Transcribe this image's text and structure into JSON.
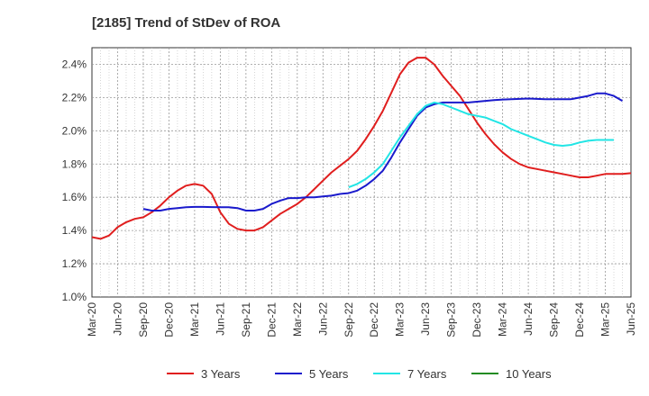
{
  "chart_data": {
    "type": "line",
    "title": "[2185]  Trend of StDev of ROA",
    "xlabel": "",
    "ylabel": "",
    "x_ticks": [
      "Mar-20",
      "Jun-20",
      "Sep-20",
      "Dec-20",
      "Mar-21",
      "Jun-21",
      "Sep-21",
      "Dec-21",
      "Mar-22",
      "Jun-22",
      "Sep-22",
      "Dec-22",
      "Mar-23",
      "Jun-23",
      "Sep-23",
      "Dec-23",
      "Mar-24",
      "Jun-24",
      "Sep-24",
      "Dec-24",
      "Mar-25",
      "Jun-25"
    ],
    "y_ticks": [
      "1.0%",
      "1.2%",
      "1.4%",
      "1.6%",
      "1.8%",
      "2.0%",
      "2.2%",
      "2.4%"
    ],
    "ylim": [
      1.0,
      2.5
    ],
    "grid": true,
    "legend_position": "bottom",
    "series": [
      {
        "name": "3 Years",
        "color": "#e01e1e",
        "values": [
          1.36,
          1.35,
          1.37,
          1.42,
          1.45,
          1.47,
          1.48,
          1.51,
          1.55,
          1.6,
          1.64,
          1.67,
          1.68,
          1.67,
          1.62,
          1.51,
          1.44,
          1.41,
          1.4,
          1.4,
          1.42,
          1.46,
          1.5,
          1.53,
          1.56,
          1.6,
          1.65,
          1.7,
          1.75,
          1.79,
          1.83,
          1.88,
          1.95,
          2.03,
          2.12,
          2.23,
          2.34,
          2.41,
          2.44,
          2.44,
          2.4,
          2.33,
          2.27,
          2.21,
          2.13,
          2.05,
          1.98,
          1.92,
          1.87,
          1.83,
          1.8,
          1.78,
          1.77,
          1.76,
          1.75,
          1.74,
          1.73,
          1.72,
          1.72,
          1.73,
          1.74,
          1.74,
          1.74,
          1.745
        ]
      },
      {
        "name": "5 Years",
        "color": "#1a1acc",
        "values": [
          null,
          null,
          null,
          null,
          null,
          null,
          1.53,
          1.52,
          1.52,
          1.53,
          1.535,
          1.54,
          1.542,
          1.542,
          1.541,
          1.54,
          1.54,
          1.535,
          1.52,
          1.52,
          1.53,
          1.56,
          1.58,
          1.595,
          1.595,
          1.6,
          1.6,
          1.605,
          1.61,
          1.62,
          1.625,
          1.64,
          1.67,
          1.71,
          1.76,
          1.84,
          1.93,
          2.01,
          2.09,
          2.14,
          2.16,
          2.17,
          2.17,
          2.17,
          2.17,
          2.175,
          2.18,
          2.185,
          2.188,
          2.19,
          2.192,
          2.194,
          2.192,
          2.19,
          2.19,
          2.19,
          2.19,
          2.2,
          2.21,
          2.225,
          2.225,
          2.21,
          2.18
        ]
      },
      {
        "name": "7 Years",
        "color": "#22e5e5",
        "values": [
          null,
          null,
          null,
          null,
          null,
          null,
          null,
          null,
          null,
          null,
          null,
          null,
          null,
          null,
          null,
          null,
          null,
          null,
          null,
          null,
          null,
          null,
          null,
          null,
          null,
          null,
          null,
          null,
          null,
          null,
          1.66,
          1.68,
          1.71,
          1.75,
          1.8,
          1.88,
          1.96,
          2.03,
          2.1,
          2.15,
          2.17,
          2.16,
          2.14,
          2.12,
          2.1,
          2.09,
          2.08,
          2.06,
          2.04,
          2.01,
          1.99,
          1.97,
          1.95,
          1.93,
          1.915,
          1.91,
          1.915,
          1.93,
          1.94,
          1.945,
          1.945,
          1.945
        ]
      },
      {
        "name": "10 Years",
        "color": "#228b22",
        "values": []
      }
    ]
  }
}
